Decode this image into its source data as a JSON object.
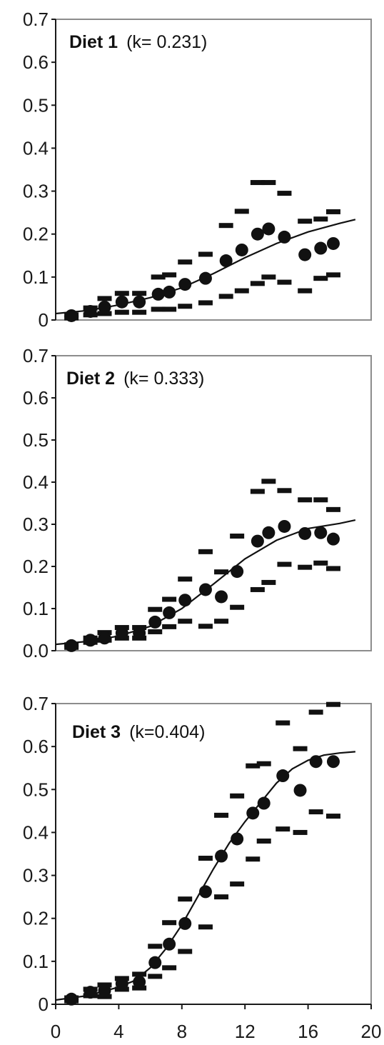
{
  "chart_data": [
    {
      "type": "scatter",
      "title": "Diet 1",
      "annotation": "(k= 0.231)",
      "ylim": [
        0,
        0.7
      ],
      "xlim": [
        0,
        20
      ],
      "yticks": [
        "0",
        "0.1",
        "0.2",
        "0.3",
        "0.4",
        "0.5",
        "0.6",
        "0.7"
      ],
      "mean_points": [
        [
          1,
          0.01
        ],
        [
          2.2,
          0.02
        ],
        [
          3.1,
          0.03
        ],
        [
          4.2,
          0.042
        ],
        [
          5.3,
          0.042
        ],
        [
          6.5,
          0.06
        ],
        [
          7.2,
          0.065
        ],
        [
          8.2,
          0.083
        ],
        [
          9.5,
          0.097
        ],
        [
          10.8,
          0.138
        ],
        [
          11.8,
          0.163
        ],
        [
          12.8,
          0.2
        ],
        [
          13.5,
          0.212
        ],
        [
          14.5,
          0.193
        ],
        [
          15.8,
          0.152
        ],
        [
          16.8,
          0.167
        ],
        [
          17.6,
          0.178
        ]
      ],
      "upper_bounds": [
        [
          1,
          0.012
        ],
        [
          2.2,
          0.028
        ],
        [
          3.1,
          0.05
        ],
        [
          4.2,
          0.062
        ],
        [
          5.3,
          0.062
        ],
        [
          6.5,
          0.1
        ],
        [
          7.2,
          0.105
        ],
        [
          8.2,
          0.135
        ],
        [
          9.5,
          0.153
        ],
        [
          10.8,
          0.22
        ],
        [
          11.8,
          0.253
        ],
        [
          12.8,
          0.32
        ],
        [
          13.5,
          0.32
        ],
        [
          14.5,
          0.295
        ],
        [
          15.8,
          0.23
        ],
        [
          16.8,
          0.235
        ],
        [
          17.6,
          0.252
        ]
      ],
      "lower_bounds": [
        [
          1,
          0.005
        ],
        [
          2.2,
          0.012
        ],
        [
          3.1,
          0.015
        ],
        [
          4.2,
          0.018
        ],
        [
          5.3,
          0.018
        ],
        [
          6.5,
          0.025
        ],
        [
          7.2,
          0.025
        ],
        [
          8.2,
          0.032
        ],
        [
          9.5,
          0.04
        ],
        [
          10.8,
          0.055
        ],
        [
          11.8,
          0.068
        ],
        [
          12.8,
          0.085
        ],
        [
          13.5,
          0.1
        ],
        [
          14.5,
          0.088
        ],
        [
          15.8,
          0.068
        ],
        [
          16.8,
          0.097
        ],
        [
          17.6,
          0.105
        ]
      ],
      "fit_curve": [
        [
          0,
          0.015
        ],
        [
          2,
          0.022
        ],
        [
          4,
          0.035
        ],
        [
          6,
          0.052
        ],
        [
          8,
          0.075
        ],
        [
          10,
          0.108
        ],
        [
          12,
          0.145
        ],
        [
          14,
          0.178
        ],
        [
          16,
          0.205
        ],
        [
          18,
          0.225
        ],
        [
          19,
          0.234
        ]
      ]
    },
    {
      "type": "scatter",
      "title": "Diet 2",
      "annotation": "(k= 0.333)",
      "ylim": [
        0,
        0.7
      ],
      "xlim": [
        0,
        20
      ],
      "yticks": [
        "0.0",
        "0.1",
        "0.2",
        "0.3",
        "0.4",
        "0.5",
        "0.6",
        "0.7"
      ],
      "mean_points": [
        [
          1,
          0.012
        ],
        [
          2.2,
          0.025
        ],
        [
          3.1,
          0.03
        ],
        [
          4.2,
          0.042
        ],
        [
          5.3,
          0.042
        ],
        [
          6.3,
          0.068
        ],
        [
          7.2,
          0.09
        ],
        [
          8.2,
          0.12
        ],
        [
          9.5,
          0.145
        ],
        [
          10.5,
          0.128
        ],
        [
          11.5,
          0.188
        ],
        [
          12.8,
          0.26
        ],
        [
          13.5,
          0.28
        ],
        [
          14.5,
          0.295
        ],
        [
          15.8,
          0.278
        ],
        [
          16.8,
          0.28
        ],
        [
          17.6,
          0.265
        ]
      ],
      "upper_bounds": [
        [
          1,
          0.014
        ],
        [
          2.2,
          0.03
        ],
        [
          3.1,
          0.043
        ],
        [
          4.2,
          0.055
        ],
        [
          5.3,
          0.055
        ],
        [
          6.3,
          0.098
        ],
        [
          7.2,
          0.122
        ],
        [
          8.2,
          0.17
        ],
        [
          9.5,
          0.235
        ],
        [
          10.5,
          0.187
        ],
        [
          11.5,
          0.272
        ],
        [
          12.8,
          0.378
        ],
        [
          13.5,
          0.402
        ],
        [
          14.5,
          0.38
        ],
        [
          15.8,
          0.358
        ],
        [
          16.8,
          0.358
        ],
        [
          17.6,
          0.335
        ]
      ],
      "lower_bounds": [
        [
          1,
          0.008
        ],
        [
          2.2,
          0.02
        ],
        [
          3.1,
          0.025
        ],
        [
          4.2,
          0.03
        ],
        [
          5.3,
          0.03
        ],
        [
          6.3,
          0.045
        ],
        [
          7.2,
          0.057
        ],
        [
          8.2,
          0.07
        ],
        [
          9.5,
          0.058
        ],
        [
          10.5,
          0.07
        ],
        [
          11.5,
          0.103
        ],
        [
          12.8,
          0.145
        ],
        [
          13.5,
          0.162
        ],
        [
          14.5,
          0.205
        ],
        [
          15.8,
          0.198
        ],
        [
          16.8,
          0.208
        ],
        [
          17.6,
          0.195
        ]
      ],
      "fit_curve": [
        [
          0,
          0.015
        ],
        [
          2,
          0.022
        ],
        [
          4,
          0.035
        ],
        [
          6,
          0.058
        ],
        [
          8,
          0.1
        ],
        [
          10,
          0.158
        ],
        [
          12,
          0.218
        ],
        [
          14,
          0.262
        ],
        [
          16,
          0.29
        ],
        [
          18,
          0.302
        ],
        [
          19,
          0.31
        ]
      ]
    },
    {
      "type": "scatter",
      "title": "Diet 3",
      "annotation": "(k=0.404)",
      "ylim": [
        0,
        0.7
      ],
      "xlim": [
        0,
        20
      ],
      "yticks": [
        "0",
        "0.1",
        "0.2",
        "0.3",
        "0.4",
        "0.5",
        "0.6",
        "0.7"
      ],
      "xticks": [
        "0",
        "4",
        "8",
        "12",
        "16",
        "20"
      ],
      "mean_points": [
        [
          1,
          0.012
        ],
        [
          2.2,
          0.028
        ],
        [
          3.1,
          0.032
        ],
        [
          4.2,
          0.048
        ],
        [
          5.3,
          0.052
        ],
        [
          6.3,
          0.097
        ],
        [
          7.2,
          0.14
        ],
        [
          8.2,
          0.188
        ],
        [
          9.5,
          0.262
        ],
        [
          10.5,
          0.345
        ],
        [
          11.5,
          0.385
        ],
        [
          12.5,
          0.445
        ],
        [
          13.2,
          0.468
        ],
        [
          14.4,
          0.532
        ],
        [
          15.5,
          0.498
        ],
        [
          16.5,
          0.565
        ],
        [
          17.6,
          0.565
        ]
      ],
      "upper_bounds": [
        [
          1,
          0.015
        ],
        [
          2.2,
          0.035
        ],
        [
          3.1,
          0.045
        ],
        [
          4.2,
          0.06
        ],
        [
          5.3,
          0.07
        ],
        [
          6.3,
          0.135
        ],
        [
          7.2,
          0.19
        ],
        [
          8.2,
          0.245
        ],
        [
          9.5,
          0.34
        ],
        [
          10.5,
          0.44
        ],
        [
          11.5,
          0.485
        ],
        [
          12.5,
          0.555
        ],
        [
          13.2,
          0.56
        ],
        [
          14.4,
          0.655
        ],
        [
          15.5,
          0.595
        ],
        [
          16.5,
          0.68
        ],
        [
          17.6,
          0.698
        ]
      ],
      "lower_bounds": [
        [
          1,
          0.008
        ],
        [
          2.2,
          0.02
        ],
        [
          3.1,
          0.018
        ],
        [
          4.2,
          0.035
        ],
        [
          5.3,
          0.038
        ],
        [
          6.3,
          0.065
        ],
        [
          7.2,
          0.085
        ],
        [
          8.2,
          0.123
        ],
        [
          9.5,
          0.18
        ],
        [
          10.5,
          0.25
        ],
        [
          11.5,
          0.28
        ],
        [
          12.5,
          0.338
        ],
        [
          13.2,
          0.38
        ],
        [
          14.4,
          0.408
        ],
        [
          15.5,
          0.4
        ],
        [
          16.5,
          0.448
        ],
        [
          17.6,
          0.438
        ]
      ],
      "fit_curve": [
        [
          0,
          0.01
        ],
        [
          2,
          0.02
        ],
        [
          4,
          0.04
        ],
        [
          5,
          0.055
        ],
        [
          6,
          0.085
        ],
        [
          7,
          0.13
        ],
        [
          8,
          0.185
        ],
        [
          9,
          0.25
        ],
        [
          10,
          0.315
        ],
        [
          11,
          0.375
        ],
        [
          12,
          0.425
        ],
        [
          13,
          0.47
        ],
        [
          14,
          0.515
        ],
        [
          15,
          0.548
        ],
        [
          16,
          0.568
        ],
        [
          17,
          0.58
        ],
        [
          18,
          0.585
        ],
        [
          19,
          0.588
        ]
      ]
    }
  ]
}
